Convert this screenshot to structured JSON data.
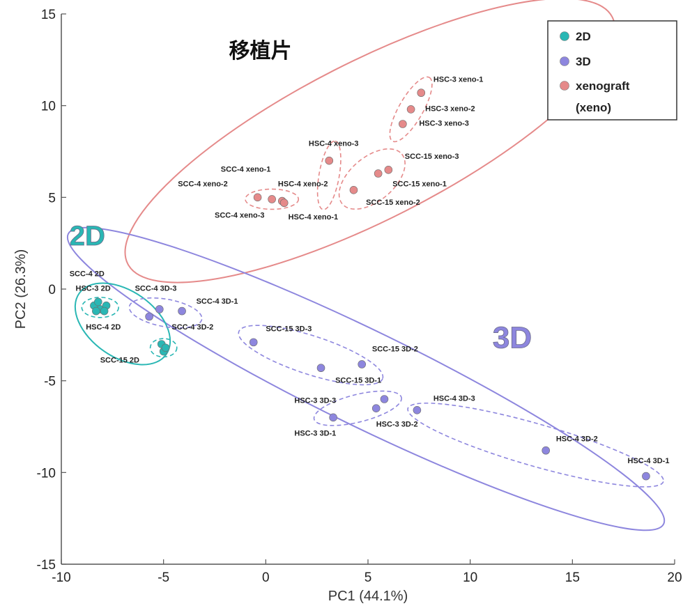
{
  "chart_data": {
    "type": "scatter",
    "xlabel": "PC1 (44.1%)",
    "ylabel": "PC2 (26.3%)",
    "xlim": [
      -10,
      20
    ],
    "ylim": [
      -15,
      15
    ],
    "xticks": [
      "-10",
      "-5",
      "0",
      "5",
      "10",
      "15",
      "20"
    ],
    "yticks": [
      "15",
      "10",
      "5",
      "0",
      "-5",
      "-10",
      "-15"
    ],
    "grid": false,
    "legend": {
      "placement": "top-right",
      "entries": [
        {
          "label": "2D",
          "color": "#2ab7b4"
        },
        {
          "label": "3D",
          "color": "#8d86de"
        },
        {
          "label": "xenograft",
          "color": "#e58a8a"
        },
        {
          "label": "(xeno)",
          "color": ""
        }
      ]
    },
    "group_labels": [
      {
        "text": "移植片",
        "x": -1.8,
        "y": 12.6,
        "color": "#111111",
        "size": 30
      },
      {
        "text": "2D",
        "x": -9.6,
        "y": 2.4,
        "color": "#2ab7b4",
        "size": 40
      },
      {
        "text": "3D",
        "x": 11.1,
        "y": -3.2,
        "color": "#8d86de",
        "size": 44
      }
    ],
    "series": [
      {
        "name": "2D",
        "color": "#2ab7b4",
        "points": [
          {
            "x": -8.4,
            "y": -0.9,
            "label": ""
          },
          {
            "x": -8.1,
            "y": -1.1,
            "label": ""
          },
          {
            "x": -7.8,
            "y": -0.9,
            "label": ""
          },
          {
            "x": -8.2,
            "y": -0.7,
            "label": ""
          },
          {
            "x": -7.9,
            "y": -1.2,
            "label": ""
          },
          {
            "x": -8.3,
            "y": -1.2,
            "label": ""
          },
          {
            "x": -5.1,
            "y": -3.0,
            "label": ""
          },
          {
            "x": -5.0,
            "y": -3.4,
            "label": ""
          },
          {
            "x": -4.9,
            "y": -3.2,
            "label": ""
          }
        ]
      },
      {
        "name": "3D",
        "color": "#8d86de",
        "points": [
          {
            "x": -5.2,
            "y": -1.1,
            "label": ""
          },
          {
            "x": -4.1,
            "y": -1.2,
            "label": ""
          },
          {
            "x": -5.7,
            "y": -1.5,
            "label": ""
          },
          {
            "x": -0.6,
            "y": -2.9,
            "label": ""
          },
          {
            "x": 4.7,
            "y": -4.1,
            "label": ""
          },
          {
            "x": 2.7,
            "y": -4.3,
            "label": ""
          },
          {
            "x": 3.3,
            "y": -7.0,
            "label": ""
          },
          {
            "x": 5.8,
            "y": -6.0,
            "label": ""
          },
          {
            "x": 5.4,
            "y": -6.5,
            "label": ""
          },
          {
            "x": 7.4,
            "y": -6.6,
            "label": ""
          },
          {
            "x": 13.7,
            "y": -8.8,
            "label": ""
          },
          {
            "x": 18.6,
            "y": -10.2,
            "label": ""
          }
        ]
      },
      {
        "name": "xenograft",
        "color": "#e58a8a",
        "points": [
          {
            "x": 7.6,
            "y": 10.7,
            "label": ""
          },
          {
            "x": 7.1,
            "y": 9.8,
            "label": ""
          },
          {
            "x": 6.7,
            "y": 9.0,
            "label": ""
          },
          {
            "x": 3.1,
            "y": 7.0,
            "label": ""
          },
          {
            "x": 6.0,
            "y": 6.5,
            "label": ""
          },
          {
            "x": 5.5,
            "y": 6.3,
            "label": ""
          },
          {
            "x": 4.3,
            "y": 5.4,
            "label": ""
          },
          {
            "x": -0.4,
            "y": 5.0,
            "label": ""
          },
          {
            "x": 0.3,
            "y": 4.9,
            "label": ""
          },
          {
            "x": 0.8,
            "y": 4.8,
            "label": ""
          },
          {
            "x": 0.9,
            "y": 4.7,
            "label": ""
          }
        ]
      }
    ],
    "annotations": [
      {
        "text": "HSC-3 xeno-1",
        "x": 8.2,
        "y": 11.3
      },
      {
        "text": "HSC-3 xeno-2",
        "x": 7.8,
        "y": 9.7
      },
      {
        "text": "HSC-3 xeno-3",
        "x": 7.5,
        "y": 8.9
      },
      {
        "text": "HSC-4 xeno-3",
        "x": 2.1,
        "y": 7.8
      },
      {
        "text": "SCC-15 xeno-3",
        "x": 6.8,
        "y": 7.1
      },
      {
        "text": "SCC-4 xeno-1",
        "x": -2.2,
        "y": 6.4
      },
      {
        "text": "SCC-4 xeno-2",
        "x": -4.3,
        "y": 5.6
      },
      {
        "text": "HSC-4 xeno-2",
        "x": 0.6,
        "y": 5.6
      },
      {
        "text": "SCC-15 xeno-1",
        "x": 6.2,
        "y": 5.6
      },
      {
        "text": "SCC-15 xeno-2",
        "x": 4.9,
        "y": 4.6
      },
      {
        "text": "SCC-4 xeno-3",
        "x": -2.5,
        "y": 3.9
      },
      {
        "text": "HSC-4 xeno-1",
        "x": 1.1,
        "y": 3.8
      },
      {
        "text": "SCC-4 2D",
        "x": -9.6,
        "y": 0.7
      },
      {
        "text": "HSC-3 2D",
        "x": -9.3,
        "y": -0.1
      },
      {
        "text": "HSC-4 2D",
        "x": -8.8,
        "y": -2.2
      },
      {
        "text": "SCC-15 2D",
        "x": -8.1,
        "y": -4.0
      },
      {
        "text": "SCC-4 3D-3",
        "x": -6.4,
        "y": -0.1
      },
      {
        "text": "SCC-4 3D-1",
        "x": -3.4,
        "y": -0.8
      },
      {
        "text": "SCC-4 3D-2",
        "x": -4.6,
        "y": -2.2
      },
      {
        "text": "SCC-15 3D-3",
        "x": 0.0,
        "y": -2.3
      },
      {
        "text": "SCC-15 3D-2",
        "x": 5.2,
        "y": -3.4
      },
      {
        "text": "SCC-15 3D-1",
        "x": 3.4,
        "y": -5.1
      },
      {
        "text": "HSC-3 3D-3",
        "x": 1.4,
        "y": -6.2
      },
      {
        "text": "HSC-4 3D-3",
        "x": 8.2,
        "y": -6.1
      },
      {
        "text": "HSC-3 3D-2",
        "x": 5.4,
        "y": -7.5
      },
      {
        "text": "HSC-3 3D-1",
        "x": 1.4,
        "y": -8.0
      },
      {
        "text": "HSC-4 3D-2",
        "x": 14.2,
        "y": -8.3
      },
      {
        "text": "HSC-4 3D-1",
        "x": 17.7,
        "y": -9.5
      }
    ],
    "ellipses": [
      {
        "cx": 5.1,
        "cy": 8.1,
        "rx": 13.3,
        "ry": 4.3,
        "angle": 27,
        "color": "#e58a8a",
        "dashed": false
      },
      {
        "cx": 7.1,
        "cy": 9.8,
        "rx": 1.8,
        "ry": 0.65,
        "angle": 60,
        "color": "#e58a8a",
        "dashed": true
      },
      {
        "cx": 3.1,
        "cy": 6.2,
        "rx": 1.7,
        "ry": 0.55,
        "angle": 80,
        "color": "#e58a8a",
        "dashed": true
      },
      {
        "cx": 5.2,
        "cy": 6.0,
        "rx": 1.9,
        "ry": 1.2,
        "angle": 40,
        "color": "#e58a8a",
        "dashed": true
      },
      {
        "cx": 0.3,
        "cy": 4.9,
        "rx": 1.3,
        "ry": 0.55,
        "angle": 0,
        "color": "#e58a8a",
        "dashed": true
      },
      {
        "cx": 4.9,
        "cy": -4.9,
        "rx": 16.2,
        "ry": 2.6,
        "angle": -26,
        "color": "#8d86de",
        "dashed": false
      },
      {
        "cx": -7.0,
        "cy": -1.9,
        "rx": 2.6,
        "ry": 1.8,
        "angle": -35,
        "color": "#2ab7b4",
        "dashed": false
      },
      {
        "cx": -8.1,
        "cy": -1.0,
        "rx": 0.9,
        "ry": 0.55,
        "angle": 0,
        "color": "#2ab7b4",
        "dashed": true
      },
      {
        "cx": -5.0,
        "cy": -3.2,
        "rx": 0.65,
        "ry": 0.5,
        "angle": 0,
        "color": "#2ab7b4",
        "dashed": true
      },
      {
        "cx": -4.9,
        "cy": -1.3,
        "rx": 1.8,
        "ry": 0.75,
        "angle": -10,
        "color": "#8d86de",
        "dashed": true
      },
      {
        "cx": 2.2,
        "cy": -3.6,
        "rx": 3.7,
        "ry": 1.05,
        "angle": -18,
        "color": "#8d86de",
        "dashed": true
      },
      {
        "cx": 4.5,
        "cy": -6.5,
        "rx": 2.2,
        "ry": 0.75,
        "angle": 14,
        "color": "#8d86de",
        "dashed": true
      },
      {
        "cx": 13.2,
        "cy": -8.5,
        "rx": 6.5,
        "ry": 1.15,
        "angle": -16,
        "color": "#8d86de",
        "dashed": true
      }
    ]
  }
}
